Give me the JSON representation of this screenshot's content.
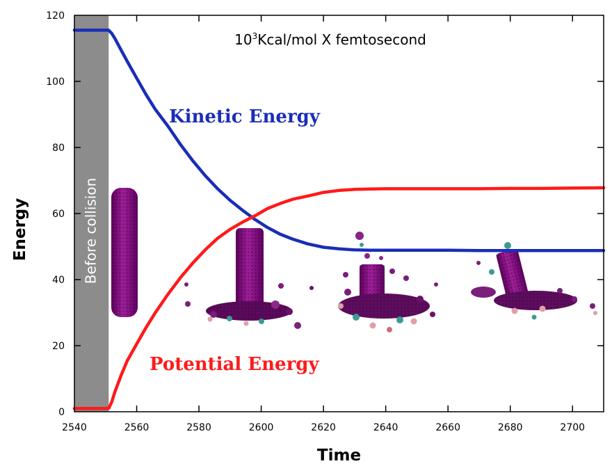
{
  "chart_data": {
    "type": "line",
    "title": "",
    "units_label": {
      "base": "10",
      "exp": "3",
      "rest": "Kcal/mol X femtosecond"
    },
    "xlabel": "Time",
    "ylabel": "Energy",
    "xlim": [
      2540,
      2710
    ],
    "ylim": [
      0,
      120
    ],
    "xticks": [
      2540,
      2560,
      2580,
      2600,
      2620,
      2640,
      2660,
      2680,
      2700
    ],
    "yticks": [
      0,
      20,
      40,
      60,
      80,
      100,
      120
    ],
    "grid": false,
    "annotations": {
      "before_collision": {
        "label": "Before collision",
        "x_range": [
          2540,
          2551
        ]
      }
    },
    "series": [
      {
        "name": "Kinetic Energy",
        "color": "#1a2db8",
        "x": [
          2540,
          2549,
          2551,
          2552,
          2553,
          2555,
          2557,
          2560,
          2563,
          2566,
          2570,
          2574,
          2578,
          2582,
          2586,
          2590,
          2594,
          2598,
          2602,
          2606,
          2610,
          2615,
          2620,
          2625,
          2630,
          2635,
          2640,
          2650,
          2660,
          2670,
          2680,
          2690,
          2700,
          2710
        ],
        "y": [
          115.5,
          115.5,
          115.5,
          114.5,
          113,
          109.5,
          106,
          101,
          96,
          91.5,
          86.5,
          81,
          76,
          71.5,
          67.5,
          64,
          61,
          58.2,
          55.8,
          53.8,
          52.3,
          50.8,
          49.8,
          49.3,
          49,
          48.9,
          48.9,
          48.9,
          48.9,
          48.8,
          48.8,
          48.8,
          48.8,
          48.8
        ]
      },
      {
        "name": "Potential Energy",
        "color": "#ff1a1a",
        "x": [
          2540,
          2549,
          2551,
          2552,
          2553,
          2555,
          2557,
          2560,
          2563,
          2566,
          2570,
          2574,
          2578,
          2582,
          2586,
          2590,
          2594,
          2598,
          2602,
          2606,
          2610,
          2615,
          2620,
          2625,
          2630,
          2635,
          2640,
          2650,
          2660,
          2670,
          2680,
          2690,
          2700,
          2710
        ],
        "y": [
          1,
          1,
          1,
          3,
          6,
          11,
          15.5,
          20.5,
          25.5,
          30,
          35.5,
          40.5,
          45,
          49,
          52.5,
          55.2,
          57.4,
          59.3,
          61.5,
          63,
          64.3,
          65.3,
          66.4,
          67,
          67.3,
          67.4,
          67.5,
          67.5,
          67.5,
          67.5,
          67.6,
          67.6,
          67.7,
          67.8
        ]
      }
    ]
  }
}
